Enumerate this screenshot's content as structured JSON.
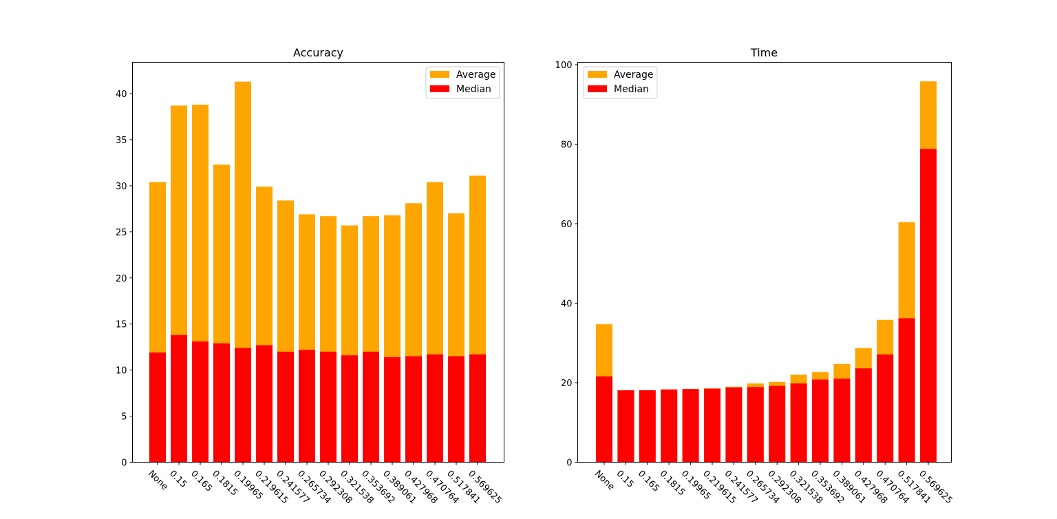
{
  "colors": {
    "average": "#ffa500",
    "median": "#ff0000",
    "axes": "#000000",
    "background": "#ffffff"
  },
  "chart_data": [
    {
      "type": "bar",
      "title": "Accuracy",
      "xlabel": "",
      "ylabel": "",
      "categories": [
        "None",
        "0.15",
        "0.165",
        "0.1815",
        "0.19965",
        "0.219615",
        "0.241577",
        "0.265734",
        "0.292308",
        "0.321538",
        "0.353692",
        "0.389061",
        "0.427968",
        "0.470764",
        "0.517841",
        "0.569625"
      ],
      "ylim": [
        0,
        43.4
      ],
      "yticks": [
        0,
        5,
        10,
        15,
        20,
        25,
        30,
        35,
        40
      ],
      "grid": false,
      "legend": {
        "placement": "upper right",
        "entries": [
          "Average",
          "Median"
        ]
      },
      "series": [
        {
          "name": "Average",
          "values": [
            30.4,
            38.7,
            38.8,
            32.3,
            41.3,
            29.9,
            28.4,
            26.9,
            26.7,
            25.7,
            26.7,
            26.8,
            28.1,
            30.4,
            27.0,
            31.1
          ]
        },
        {
          "name": "Median",
          "values": [
            11.9,
            13.8,
            13.1,
            12.9,
            12.4,
            12.7,
            12.0,
            12.2,
            12.0,
            11.6,
            12.0,
            11.4,
            11.5,
            11.7,
            11.5,
            11.7
          ]
        }
      ]
    },
    {
      "type": "bar",
      "title": "Time",
      "xlabel": "",
      "ylabel": "",
      "categories": [
        "None",
        "0.15",
        "0.165",
        "0.1815",
        "0.19965",
        "0.219615",
        "0.241577",
        "0.265734",
        "0.292308",
        "0.321538",
        "0.353692",
        "0.389061",
        "0.427968",
        "0.470764",
        "0.517841",
        "0.569625"
      ],
      "ylim": [
        0,
        100.6
      ],
      "yticks": [
        0,
        20,
        40,
        60,
        80,
        100
      ],
      "grid": false,
      "legend": {
        "placement": "upper left",
        "entries": [
          "Average",
          "Median"
        ]
      },
      "series": [
        {
          "name": "Average",
          "values": [
            34.7,
            18.1,
            18.1,
            18.3,
            18.4,
            18.6,
            19.0,
            19.8,
            20.2,
            22.0,
            22.7,
            24.7,
            28.7,
            35.8,
            60.4,
            95.8
          ]
        },
        {
          "name": "Median",
          "values": [
            21.6,
            18.1,
            18.1,
            18.3,
            18.4,
            18.5,
            18.8,
            18.9,
            19.2,
            19.8,
            20.8,
            21.0,
            23.6,
            27.1,
            36.2,
            78.8
          ]
        }
      ]
    }
  ]
}
